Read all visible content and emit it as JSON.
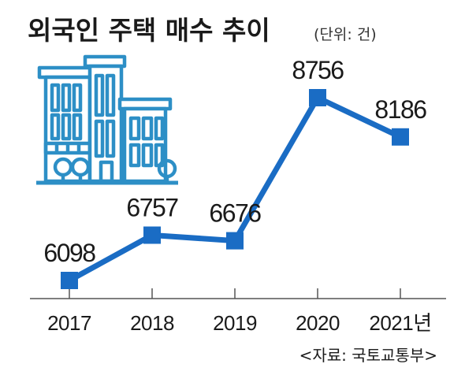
{
  "title": "외국인 주택 매수 추이",
  "unit": "(단위: 건)",
  "source": "<자료: 국토교통부>",
  "colors": {
    "series": "#1a6cc4",
    "building_stroke": "#2d8fc6",
    "axis": "#555555",
    "text": "#1a1a1a"
  },
  "chart_data": {
    "type": "line",
    "categories": [
      "2017",
      "2018",
      "2019",
      "2020",
      "2021년"
    ],
    "series": [
      {
        "values": [
          6098,
          6757,
          6676,
          8756,
          8186
        ]
      }
    ],
    "data_labels": [
      "6098",
      "6757",
      "6676",
      "8756",
      "8186"
    ],
    "title": "외국인 주택 매수 추이",
    "xlabel": "",
    "ylabel": "",
    "ylim": [
      5800,
      9000
    ],
    "grid": false,
    "legend": "none"
  },
  "decoration": {
    "icon": "buildings-icon"
  }
}
